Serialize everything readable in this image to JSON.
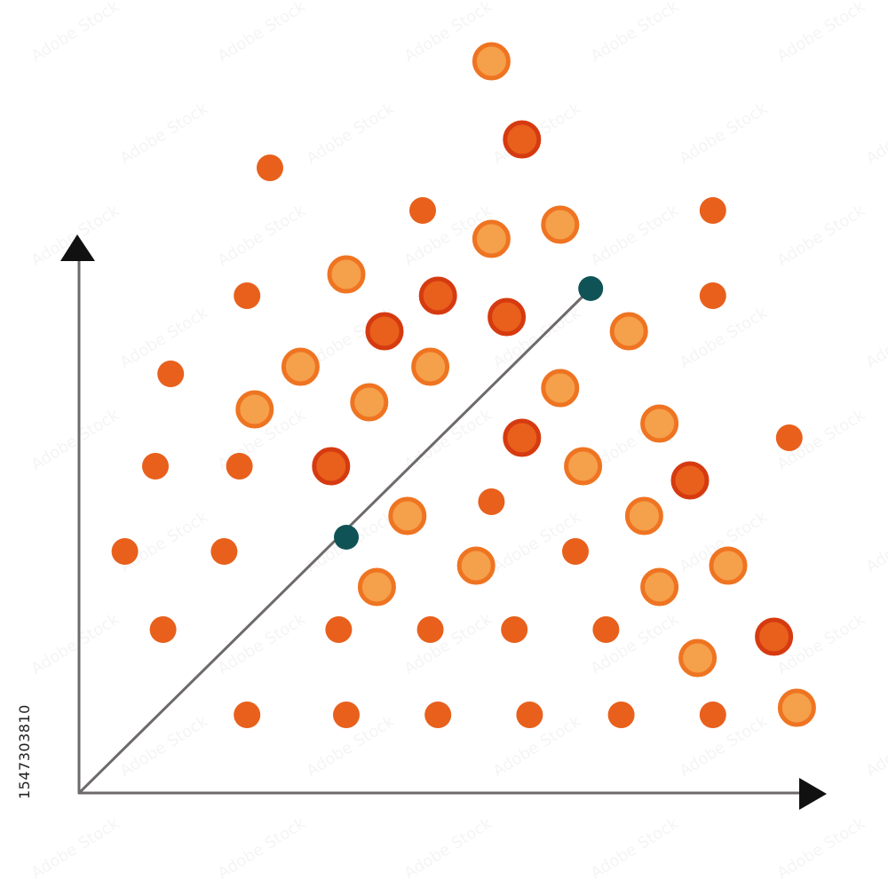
{
  "stock_id": "1547303810",
  "watermark_text": "Adobe Stock",
  "colors": {
    "background": "#ffffff",
    "axis": "#6e6a6b",
    "arrowhead": "#111111",
    "dot_small": "#e8601c",
    "ring_light_fill": "#f5a04a",
    "ring_light_stroke": "#ef7422",
    "ring_dark_fill": "#e8601c",
    "ring_dark_stroke": "#d63a10",
    "trend_line": "#6e6a6b",
    "trend_point": "#0f5356"
  },
  "chart_data": {
    "type": "scatter",
    "title": "",
    "xlabel": "",
    "ylabel": "",
    "xlim": [
      0,
      100
    ],
    "ylim": [
      0,
      100
    ],
    "grid": false,
    "legend": "none",
    "series": [
      {
        "style": "dot-small",
        "points": [
          [
            25,
            88
          ],
          [
            45,
            82
          ],
          [
            22,
            70
          ],
          [
            12,
            59
          ],
          [
            10,
            46
          ],
          [
            21,
            46
          ],
          [
            6,
            34
          ],
          [
            19,
            34
          ],
          [
            11,
            23
          ],
          [
            34,
            23
          ],
          [
            46,
            23
          ],
          [
            57,
            23
          ],
          [
            69,
            23
          ],
          [
            22,
            11
          ],
          [
            35,
            11
          ],
          [
            47,
            11
          ],
          [
            59,
            11
          ],
          [
            71,
            11
          ],
          [
            83,
            11
          ],
          [
            83,
            82
          ],
          [
            83,
            70
          ],
          [
            93,
            50
          ],
          [
            54,
            41
          ],
          [
            65,
            34
          ]
        ]
      },
      {
        "style": "ring-light",
        "points": [
          [
            54,
            103
          ],
          [
            54,
            78
          ],
          [
            63,
            80
          ],
          [
            35,
            73
          ],
          [
            29,
            60
          ],
          [
            46,
            60
          ],
          [
            23,
            54
          ],
          [
            38,
            55
          ],
          [
            63,
            57
          ],
          [
            72,
            65
          ],
          [
            76,
            52
          ],
          [
            66,
            46
          ],
          [
            43,
            39
          ],
          [
            74,
            39
          ],
          [
            52,
            32
          ],
          [
            39,
            29
          ],
          [
            85,
            32
          ],
          [
            76,
            29
          ],
          [
            81,
            19
          ],
          [
            94,
            12
          ]
        ]
      },
      {
        "style": "ring-dark",
        "points": [
          [
            58,
            92
          ],
          [
            47,
            70
          ],
          [
            56,
            67
          ],
          [
            40,
            65
          ],
          [
            58,
            50
          ],
          [
            33,
            46
          ],
          [
            80,
            44
          ],
          [
            91,
            22
          ]
        ]
      }
    ],
    "trend_line": {
      "from": [
        0,
        0
      ],
      "to": [
        67,
        71
      ],
      "points": [
        [
          35,
          36
        ],
        [
          67,
          71
        ]
      ]
    }
  }
}
